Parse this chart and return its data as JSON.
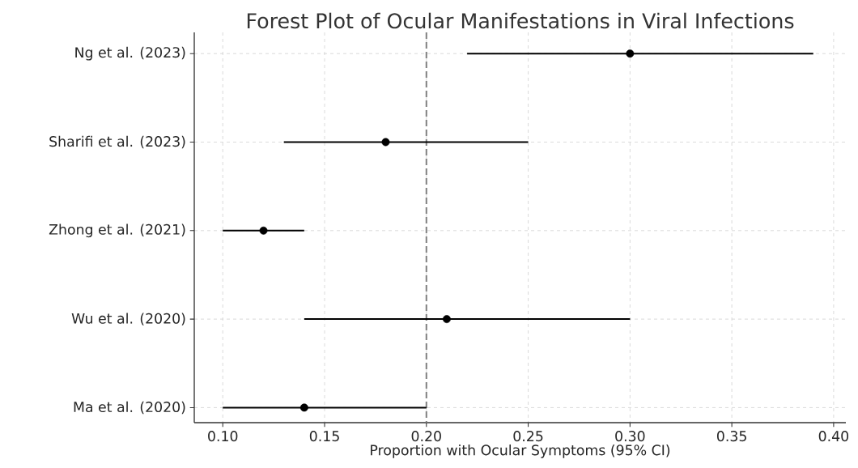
{
  "chart_data": {
    "type": "scatter",
    "orientation": "horizontal",
    "title": "Forest Plot of Ocular Manifestations in Viral Infections",
    "xlabel": "Proportion with Ocular Symptoms (95% CI)",
    "categories": [
      "Ng et al. (2023)",
      "Sharifi et al. (2023)",
      "Zhong et al. (2021)",
      "Wu et al. (2020)",
      "Ma et al. (2020)"
    ],
    "values": [
      0.3,
      0.18,
      0.12,
      0.21,
      0.14
    ],
    "errors": [
      [
        0.22,
        0.39
      ],
      [
        0.13,
        0.25
      ],
      [
        0.1,
        0.14
      ],
      [
        0.14,
        0.3
      ],
      [
        0.1,
        0.2
      ]
    ],
    "color": "#000000",
    "marker": "circle",
    "grid": true,
    "xlim": [
      0.086,
      0.406
    ],
    "xticks": [
      {
        "value": 0.1,
        "label": "0.10"
      },
      {
        "value": 0.15,
        "label": "0.15"
      },
      {
        "value": 0.2,
        "label": "0.20"
      },
      {
        "value": 0.25,
        "label": "0.25"
      },
      {
        "value": 0.3,
        "label": "0.30"
      },
      {
        "value": 0.35,
        "label": "0.35"
      },
      {
        "value": 0.4,
        "label": "0.40"
      }
    ],
    "ref_lines": [
      {
        "axis": "x",
        "value": 0.2,
        "color": "#808080",
        "line_style": "dashed"
      }
    ]
  }
}
